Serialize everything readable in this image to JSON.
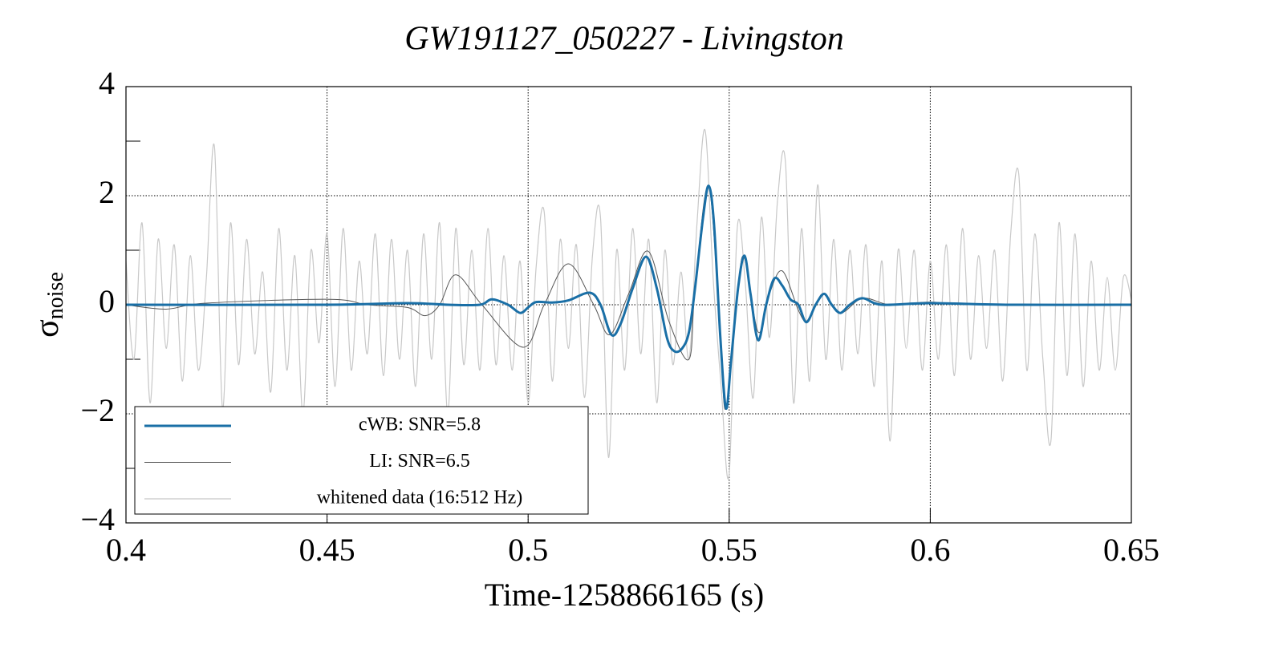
{
  "chart_data": {
    "type": "line",
    "title": "GW191127_050227 - Livingston",
    "xlabel": "Time-1258866165 (s)",
    "ylabel": "σ",
    "ylabel_subscript": "noise",
    "xlim": [
      0.4,
      0.65
    ],
    "xticks": [
      0.4,
      0.45,
      0.5,
      0.55,
      0.6,
      0.65
    ],
    "ylim": [
      -4,
      4
    ],
    "yticks": [
      {
        "value": -4,
        "label": "−4"
      },
      {
        "value": -2,
        "label": "−2"
      },
      0,
      2,
      4
    ],
    "yminorticks": [
      -3,
      -1,
      1,
      3
    ],
    "grid": true,
    "legend": "lower left",
    "series": [
      {
        "name": "whitened data (16:512 Hz)",
        "color": "#c8c8c8",
        "x": [
          0.4,
          0.402,
          0.404,
          0.406,
          0.408,
          0.41,
          0.412,
          0.414,
          0.416,
          0.418,
          0.42,
          0.422,
          0.424,
          0.426,
          0.428,
          0.43,
          0.432,
          0.434,
          0.436,
          0.438,
          0.44,
          0.442,
          0.444,
          0.446,
          0.448,
          0.45,
          0.452,
          0.454,
          0.456,
          0.458,
          0.46,
          0.462,
          0.464,
          0.466,
          0.468,
          0.47,
          0.472,
          0.474,
          0.476,
          0.478,
          0.48,
          0.482,
          0.484,
          0.486,
          0.488,
          0.49,
          0.492,
          0.494,
          0.496,
          0.498,
          0.5,
          0.502,
          0.504,
          0.506,
          0.508,
          0.51,
          0.512,
          0.514,
          0.516,
          0.518,
          0.52,
          0.522,
          0.524,
          0.526,
          0.528,
          0.53,
          0.532,
          0.534,
          0.536,
          0.538,
          0.54,
          0.542,
          0.544,
          0.546,
          0.548,
          0.55,
          0.552,
          0.554,
          0.556,
          0.558,
          0.56,
          0.562,
          0.564,
          0.566,
          0.568,
          0.57,
          0.572,
          0.574,
          0.576,
          0.578,
          0.58,
          0.582,
          0.584,
          0.586,
          0.588,
          0.59,
          0.592,
          0.594,
          0.596,
          0.598,
          0.6,
          0.602,
          0.604,
          0.606,
          0.608,
          0.61,
          0.612,
          0.614,
          0.616,
          0.618,
          0.62,
          0.622,
          0.624,
          0.626,
          0.628,
          0.63,
          0.632,
          0.634,
          0.636,
          0.638,
          0.64,
          0.642,
          0.644,
          0.646,
          0.648,
          0.65
        ],
        "values": [
          0.8,
          -1.0,
          1.5,
          -1.8,
          1.2,
          -0.8,
          1.1,
          -1.4,
          0.9,
          -1.2,
          0.5,
          2.9,
          -1.9,
          1.5,
          -1.1,
          1.2,
          -0.9,
          0.6,
          -1.6,
          1.4,
          -1.2,
          0.9,
          -2.0,
          1.0,
          -0.7,
          1.3,
          -1.5,
          1.4,
          -1.2,
          0.8,
          -0.9,
          1.3,
          -1.3,
          1.2,
          -1.0,
          1.0,
          -1.5,
          1.3,
          -1.0,
          1.5,
          -2.0,
          1.4,
          -1.1,
          1.0,
          -1.2,
          1.4,
          -1.1,
          0.9,
          -1.2,
          0.8,
          -1.8,
          0.7,
          1.7,
          -1.4,
          1.2,
          -0.8,
          1.1,
          -1.7,
          0.9,
          1.6,
          -2.8,
          1.0,
          -1.2,
          1.4,
          -0.9,
          1.2,
          -1.8,
          1.0,
          -1.1,
          0.6,
          -1.0,
          1.5,
          3.2,
          0.5,
          -1.5,
          -3.1,
          1.4,
          0.4,
          -1.7,
          1.6,
          -0.6,
          1.9,
          2.6,
          -1.8,
          1.4,
          -1.4,
          2.2,
          -1.0,
          1.2,
          -1.2,
          1.0,
          -0.9,
          1.1,
          -1.5,
          0.8,
          -2.5,
          1.0,
          -0.8,
          1.0,
          -1.2,
          0.8,
          -1.0,
          1.1,
          -1.3,
          1.4,
          -1.0,
          0.9,
          -0.8,
          1.0,
          -1.4,
          1.3,
          2.4,
          -1.2,
          1.3,
          -1.0,
          -2.5,
          1.5,
          -1.3,
          1.3,
          -1.5,
          0.8,
          -1.2,
          0.5,
          -1.2,
          0.5,
          0.1
        ]
      },
      {
        "name": "LI: SNR=6.5",
        "color": "#555555",
        "x": [
          0.4,
          0.41,
          0.42,
          0.4506,
          0.46,
          0.47,
          0.4744,
          0.478,
          0.482,
          0.4885,
          0.4988,
          0.504,
          0.51,
          0.5163,
          0.5203,
          0.525,
          0.5299,
          0.535,
          0.54,
          0.5415,
          0.5449,
          0.5478,
          0.5492,
          0.5522,
          0.5538,
          0.5572,
          0.56,
          0.5632,
          0.5672,
          0.5692,
          0.5715,
          0.5736,
          0.5776,
          0.5832,
          0.59,
          0.6,
          0.61,
          0.65
        ],
        "values": [
          0,
          -0.08,
          0.03,
          0.1,
          0,
          -0.05,
          -0.2,
          0,
          0.55,
          0,
          -0.78,
          0,
          0.75,
          0,
          -0.55,
          0.2,
          0.98,
          -0.3,
          -1.0,
          0.3,
          2.18,
          -0.6,
          -1.9,
          0.3,
          0.85,
          -0.5,
          0.2,
          0.62,
          -0.1,
          -0.3,
          0,
          0.2,
          -0.15,
          0.12,
          0,
          0.05,
          0,
          0
        ]
      },
      {
        "name": "cWB: SNR=5.8",
        "color": "#1a6fa6",
        "x": [
          0.4,
          0.45,
          0.47,
          0.48,
          0.488,
          0.491,
          0.495,
          0.498,
          0.5,
          0.502,
          0.506,
          0.51,
          0.5153,
          0.518,
          0.5207,
          0.523,
          0.526,
          0.5293,
          0.532,
          0.5345,
          0.5363,
          0.5383,
          0.54,
          0.5415,
          0.5435,
          0.5449,
          0.5462,
          0.5478,
          0.5492,
          0.5505,
          0.5522,
          0.5538,
          0.5553,
          0.5572,
          0.5592,
          0.5612,
          0.5632,
          0.5652,
          0.5672,
          0.5692,
          0.5715,
          0.5736,
          0.5755,
          0.5776,
          0.58,
          0.5832,
          0.588,
          0.6,
          0.62,
          0.65
        ],
        "values": [
          0,
          0,
          0.03,
          0,
          0,
          0.1,
          0,
          -0.15,
          -0.05,
          0.05,
          0.04,
          0.08,
          0.22,
          0,
          -0.55,
          -0.35,
          0.3,
          0.88,
          0.3,
          -0.6,
          -0.85,
          -0.8,
          -0.5,
          0.3,
          1.6,
          2.18,
          1.5,
          -0.6,
          -1.9,
          -1.0,
          0.3,
          0.9,
          0.2,
          -0.65,
          0,
          0.48,
          0.35,
          0.1,
          0,
          -0.32,
          0,
          0.2,
          0,
          -0.15,
          0,
          0.12,
          0,
          0.03,
          0,
          0
        ]
      }
    ]
  }
}
